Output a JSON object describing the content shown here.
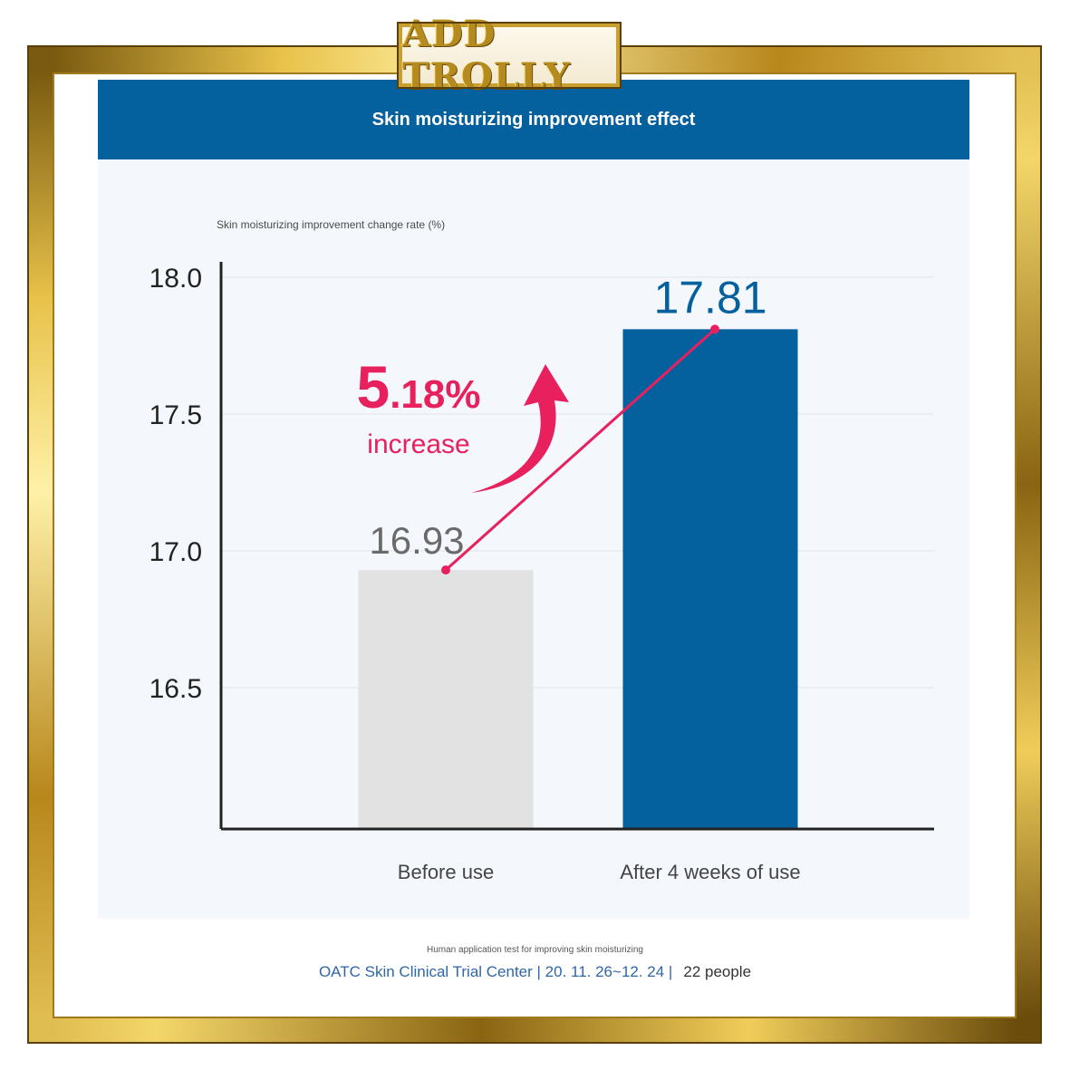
{
  "logo": {
    "text": "ADD TROLLY"
  },
  "colors": {
    "frame_gold": "#d4a93a",
    "banner_blue": "#05609e",
    "before_bar": "#e2e2e2",
    "after_bar": "#05609e",
    "accent_pink": "#e8215e"
  },
  "chart_data": {
    "type": "bar",
    "title": "Skin moisturizing improvement effect",
    "ylabel": "Skin moisturizing improvement change rate (%)",
    "categories": [
      "Before use",
      "After 4 weeks of use"
    ],
    "values": [
      16.93,
      17.81
    ],
    "value_labels": [
      "16.93",
      "17.81"
    ],
    "yticks": [
      "18.0",
      "17.5",
      "17.0",
      "16.5"
    ],
    "ylim": [
      16.0,
      18.0
    ],
    "grid": true,
    "annotation": {
      "value": "5.18%",
      "big": "5",
      "small": ".18%",
      "text": "increase"
    }
  },
  "footer": {
    "test_note": "Human application test for improving skin moisturizing",
    "center": "OATC Skin Clinical Trial Center | 20. 11. 26~12. 24 |",
    "people": "22 people"
  }
}
